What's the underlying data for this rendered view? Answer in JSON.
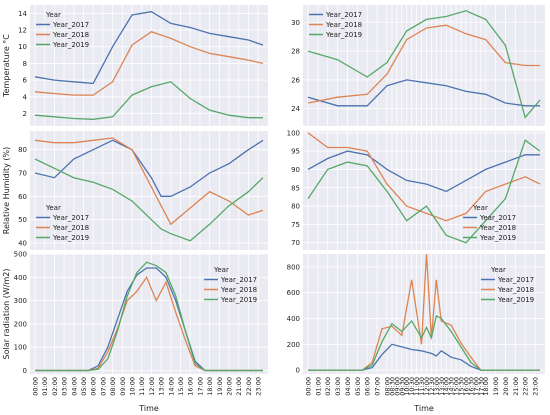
{
  "colors": {
    "Year_2017": "#4c72b0",
    "Year_2018": "#dd8452",
    "Year_2019": "#55a868",
    "plot_bg": "#eaeaf2",
    "grid": "#ffffff"
  },
  "xlabel": "Time",
  "time_ticks": [
    "00:00",
    "01:00",
    "02:00",
    "03:00",
    "04:00",
    "05:00",
    "06:00",
    "07:00",
    "08:00",
    "09:00",
    "10:00",
    "11:00",
    "12:00",
    "13:00",
    "14:00",
    "15:00",
    "16:00",
    "17:00",
    "18:00",
    "19:00",
    "20:00",
    "21:00",
    "22:00",
    "23:00"
  ],
  "right_time_ticks": [
    "00:00",
    "01:00",
    "02:00",
    "03:00",
    "04:00",
    "05:00",
    "06:00",
    "07:00",
    "08:00",
    "08:30",
    "09:00",
    "09:30",
    "10:00",
    "10:30",
    "11:00",
    "11:30",
    "12:00",
    "12:30",
    "13:00",
    "13:30",
    "14:00",
    "14:30",
    "15:00",
    "15:30",
    "16:00",
    "16:30",
    "17:00",
    "17:30",
    "18:00",
    "19:00",
    "20:00",
    "21:00",
    "22:00",
    "23:00"
  ],
  "chart_data": [
    {
      "id": "temp_left",
      "type": "line",
      "ylabel": "Temperature °C",
      "ylim": [
        0.5,
        15
      ],
      "yticks": [
        2,
        4,
        6,
        8,
        10,
        12,
        14
      ],
      "legend": {
        "title": "Year",
        "position": "top-left",
        "entries": [
          "Year_2017",
          "Year_2018",
          "Year_2019"
        ]
      },
      "x": [
        0,
        2,
        4,
        6,
        8,
        10,
        12,
        14,
        16,
        18,
        20,
        22,
        23.5
      ],
      "series": [
        {
          "name": "Year_2017",
          "values": [
            6.4,
            6.0,
            5.8,
            5.6,
            10.0,
            13.8,
            14.2,
            12.8,
            12.3,
            11.6,
            11.2,
            10.8,
            10.2
          ]
        },
        {
          "name": "Year_2018",
          "values": [
            4.6,
            4.4,
            4.2,
            4.2,
            5.8,
            10.2,
            11.8,
            11.0,
            10.0,
            9.2,
            8.8,
            8.4,
            8.0
          ]
        },
        {
          "name": "Year_2019",
          "values": [
            1.8,
            1.6,
            1.4,
            1.3,
            1.6,
            4.2,
            5.2,
            5.8,
            3.8,
            2.4,
            1.8,
            1.5,
            1.5
          ]
        }
      ]
    },
    {
      "id": "temp_right",
      "type": "line",
      "ylim": [
        22.8,
        31.2
      ],
      "yticks": [
        24,
        26,
        28,
        30
      ],
      "legend": {
        "title": "",
        "position": "top-left",
        "entries": [
          "Year_2017",
          "Year_2018",
          "Year_2019"
        ]
      },
      "x": [
        0,
        3,
        6,
        8,
        10,
        12,
        14,
        16,
        18,
        20,
        22,
        23.5
      ],
      "series": [
        {
          "name": "Year_2017",
          "values": [
            24.8,
            24.2,
            24.2,
            25.6,
            26.0,
            25.8,
            25.6,
            25.2,
            25.0,
            24.4,
            24.2,
            24.2
          ]
        },
        {
          "name": "Year_2018",
          "values": [
            24.4,
            24.8,
            25.0,
            26.4,
            28.8,
            29.6,
            29.8,
            29.2,
            28.8,
            27.2,
            27.0,
            27.0
          ]
        },
        {
          "name": "Year_2019",
          "values": [
            28.0,
            27.4,
            26.2,
            27.2,
            29.4,
            30.2,
            30.4,
            30.8,
            30.2,
            28.4,
            23.4,
            24.6
          ]
        }
      ]
    },
    {
      "id": "rh_left",
      "type": "line",
      "ylabel": "Relative Humidity (%)",
      "ylim": [
        37,
        88
      ],
      "yticks": [
        40,
        50,
        60,
        70,
        80
      ],
      "legend": {
        "title": "Year",
        "position": "bottom-left",
        "entries": [
          "Year_2017",
          "Year_2018",
          "Year_2019"
        ]
      },
      "x": [
        0,
        2,
        4,
        6,
        8,
        10,
        12,
        13,
        14,
        16,
        18,
        20,
        22,
        23.5
      ],
      "series": [
        {
          "name": "Year_2017",
          "values": [
            70,
            68,
            76,
            80,
            84,
            80,
            68,
            60,
            60,
            64,
            70,
            74,
            80,
            84
          ]
        },
        {
          "name": "Year_2018",
          "values": [
            84,
            83,
            83,
            84,
            85,
            80,
            64,
            56,
            48,
            55,
            62,
            58,
            52,
            54
          ]
        },
        {
          "name": "Year_2019",
          "values": [
            76,
            72,
            68,
            66,
            63,
            58,
            50,
            46,
            44,
            41,
            48,
            56,
            62,
            68
          ]
        }
      ]
    },
    {
      "id": "rh_right",
      "type": "line",
      "ylim": [
        68,
        100.5
      ],
      "yticks": [
        70,
        75,
        80,
        85,
        90,
        95,
        100
      ],
      "legend": {
        "title": "Year",
        "position": "bottom-right",
        "entries": [
          "Year_2017",
          "Year_2018",
          "Year_2019"
        ]
      },
      "x": [
        0,
        2,
        4,
        6,
        8,
        10,
        12,
        14,
        16,
        18,
        20,
        22,
        23.5
      ],
      "series": [
        {
          "name": "Year_2017",
          "values": [
            90,
            93,
            95,
            94,
            90,
            87,
            86,
            84,
            87,
            90,
            92,
            94,
            94
          ]
        },
        {
          "name": "Year_2018",
          "values": [
            100,
            96,
            96,
            95,
            86,
            80,
            78,
            76,
            78,
            84,
            86,
            88,
            86
          ]
        },
        {
          "name": "Year_2019",
          "values": [
            82,
            90,
            92,
            91,
            84,
            76,
            80,
            72,
            70,
            76,
            82,
            98,
            95
          ]
        }
      ]
    },
    {
      "id": "solar_left",
      "type": "line",
      "ylabel": "Solar radiation (W/m2)",
      "ylim": [
        -15,
        500
      ],
      "yticks": [
        0,
        100,
        200,
        300,
        400,
        500
      ],
      "legend": {
        "title": "Year",
        "position": "top-right",
        "entries": [
          "Year_2017",
          "Year_2018",
          "Year_2019"
        ]
      },
      "x": [
        0,
        5.5,
        6.5,
        7.5,
        8.5,
        9.5,
        10.5,
        11.5,
        12.5,
        13.5,
        14.5,
        15.5,
        16.5,
        17.5,
        23.5
      ],
      "series": [
        {
          "name": "Year_2017",
          "values": [
            0,
            0,
            20,
            100,
            220,
            340,
            410,
            440,
            440,
            400,
            300,
            170,
            40,
            0,
            0
          ]
        },
        {
          "name": "Year_2018",
          "values": [
            0,
            0,
            10,
            80,
            180,
            300,
            340,
            400,
            300,
            380,
            250,
            130,
            20,
            0,
            0
          ]
        },
        {
          "name": "Year_2019",
          "values": [
            0,
            0,
            5,
            50,
            170,
            320,
            420,
            465,
            450,
            420,
            320,
            170,
            30,
            0,
            0
          ]
        }
      ]
    },
    {
      "id": "solar_right",
      "type": "line",
      "ylim": [
        -30,
        900
      ],
      "yticks": [
        0,
        200,
        400,
        600,
        800
      ],
      "legend": {
        "title": "Year",
        "position": "top-right",
        "entries": [
          "Year_2017",
          "Year_2018",
          "Year_2019"
        ]
      },
      "x": [
        0,
        5.5,
        6.5,
        7.5,
        8.5,
        9.5,
        10.5,
        11.5,
        12,
        12.5,
        13,
        13.5,
        14.5,
        15.5,
        16.5,
        17.5,
        23.5
      ],
      "series": [
        {
          "name": "Year_2017",
          "values": [
            0,
            0,
            20,
            120,
            200,
            180,
            160,
            150,
            140,
            130,
            110,
            150,
            100,
            80,
            30,
            0,
            0
          ]
        },
        {
          "name": "Year_2018",
          "values": [
            0,
            0,
            60,
            320,
            340,
            270,
            700,
            200,
            900,
            250,
            700,
            380,
            350,
            210,
            100,
            0,
            0
          ]
        },
        {
          "name": "Year_2019",
          "values": [
            0,
            0,
            40,
            220,
            360,
            300,
            380,
            250,
            330,
            250,
            420,
            400,
            300,
            180,
            60,
            0,
            0
          ]
        }
      ]
    }
  ]
}
